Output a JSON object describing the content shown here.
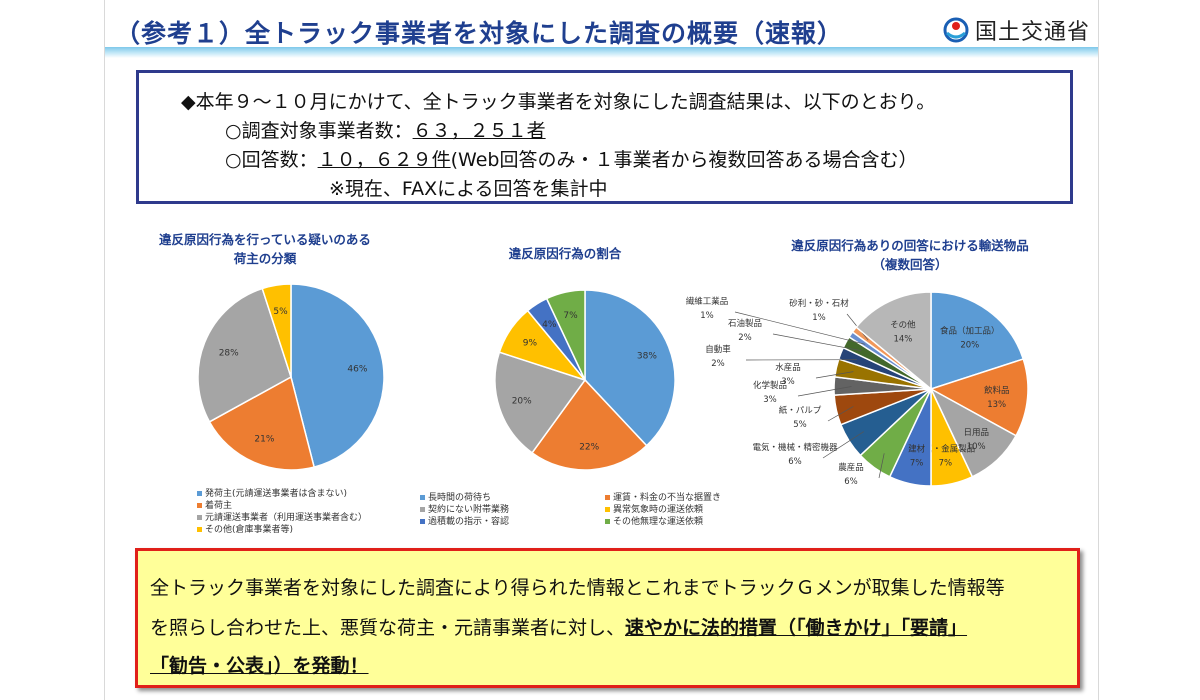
{
  "header": {
    "title": "（参考１）全トラック事業者を対象にした調査の概要（速報）",
    "logo_text": "国土交通省"
  },
  "summary": {
    "lead": "◆本年９～１０月にかけて、全トラック事業者を対象にした調査結果は、以下のとおり。",
    "item1_prefix": "○調査対象事業者数：",
    "item1_value": "６３，２５１者",
    "item2_prefix": "○回答数：",
    "item2_value": "１０，６２９件",
    "item2_note": "(Web回答のみ・１事業者から複数回答ある場合含む）",
    "note": "※現在、FAXによる回答を集計中"
  },
  "chart_data": [
    {
      "type": "pie",
      "title": "違反原因行為を行っている疑いのある荷主の分類",
      "title_line1": "違反原因行為を行っている疑いのある",
      "title_line2": "荷主の分類",
      "slices": [
        {
          "label": "発荷主(元請運送事業者は含まない)",
          "value": 46,
          "display": "46%",
          "color": "#5b9bd5"
        },
        {
          "label": "着荷主",
          "value": 21,
          "display": "21%",
          "color": "#ed7d31"
        },
        {
          "label": "元請運送事業者（利用運送事業者含む）",
          "value": 28,
          "display": "28%",
          "color": "#a5a5a5"
        },
        {
          "label": "その他(倉庫事業者等)",
          "value": 5,
          "display": "5%",
          "color": "#ffc000"
        }
      ],
      "legend_placement": "bottom"
    },
    {
      "type": "pie",
      "title": "違反原因行為の割合",
      "slices": [
        {
          "label": "長時間の荷待ち",
          "value": 38,
          "display": "38%",
          "color": "#5b9bd5"
        },
        {
          "label": "運賃・料金の不当な据置き",
          "value": 22,
          "display": "22%",
          "color": "#ed7d31"
        },
        {
          "label": "契約にない附帯業務",
          "value": 20,
          "display": "20%",
          "color": "#a5a5a5"
        },
        {
          "label": "異常気象時の運送依頼",
          "value": 9,
          "display": "9%",
          "color": "#ffc000"
        },
        {
          "label": "過積載の指示・容認",
          "value": 4,
          "display": "4%",
          "color": "#4472c4"
        },
        {
          "label": "その他無理な運送依頼",
          "value": 7,
          "display": "7%",
          "color": "#70ad47"
        }
      ],
      "legend_placement": "bottom"
    },
    {
      "type": "pie",
      "title": "違反原因行為ありの回答における輸送物品（複数回答）",
      "title_line1": "違反原因行為ありの回答における輸送物品",
      "title_line2": "（複数回答）",
      "slices": [
        {
          "label": "食品（加工品）",
          "value": 20,
          "display": "20%",
          "color": "#5b9bd5"
        },
        {
          "label": "飲料品",
          "value": 13,
          "display": "13%",
          "color": "#ed7d31"
        },
        {
          "label": "日用品",
          "value": 10,
          "display": "10%",
          "color": "#a5a5a5"
        },
        {
          "label": "金属・金属製品",
          "value": 7,
          "display": "7%",
          "color": "#ffc000"
        },
        {
          "label": "建材",
          "value": 7,
          "display": "7%",
          "color": "#4472c4"
        },
        {
          "label": "農産品",
          "value": 6,
          "display": "6%",
          "color": "#70ad47"
        },
        {
          "label": "電気・機械・精密機器",
          "value": 6,
          "display": "6%",
          "color": "#255e91"
        },
        {
          "label": "紙・パルプ",
          "value": 5,
          "display": "5%",
          "color": "#9e480e"
        },
        {
          "label": "化学製品",
          "value": 3,
          "display": "3%",
          "color": "#636363"
        },
        {
          "label": "水産品",
          "value": 3,
          "display": "3%",
          "color": "#997300"
        },
        {
          "label": "自動車",
          "value": 2,
          "display": "2%",
          "color": "#264478"
        },
        {
          "label": "石油製品",
          "value": 2,
          "display": "2%",
          "color": "#43682b"
        },
        {
          "label": "繊維工業品",
          "value": 1,
          "display": "1%",
          "color": "#698ed0"
        },
        {
          "label": "砂利・砂・石材",
          "value": 1,
          "display": "1%",
          "color": "#f1975a"
        },
        {
          "label": "その他",
          "value": 14,
          "display": "14%",
          "color": "#b7b7b7"
        }
      ]
    }
  ],
  "conclusion": {
    "line1": "全トラック事業者を対象にした調査により得られた情報とこれまでトラックＧメンが取集した情報等",
    "line2_plain": "を照らし合わせた上、悪質な荷主・元請事業者に対し、",
    "line2_strong": "速やかに法的措置（「働きかけ」「要請」",
    "line3_strong": "「勧告・公表」）を発動！"
  }
}
